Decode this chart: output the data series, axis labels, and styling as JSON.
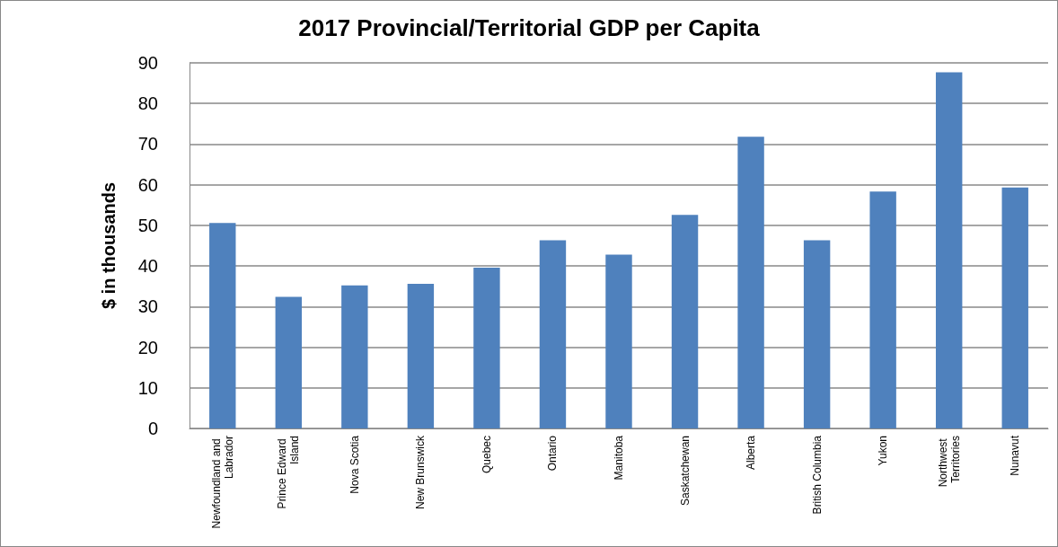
{
  "chart_data": {
    "type": "bar",
    "title": "2017 Provincial/Territorial GDP per Capita",
    "ylabel": "$ in thousands",
    "categories": [
      "Newfoundland and Labrador",
      "Prince Edward Island",
      "Nova Scotia",
      "New Brunswick",
      "Quebec",
      "Ontario",
      "Manitoba",
      "Saskatchewan",
      "Alberta",
      "British Columbia",
      "Yukon",
      "Northwest Territories",
      "Nunavut"
    ],
    "values": [
      50.6,
      32.4,
      35.2,
      35.6,
      39.6,
      46.3,
      42.8,
      52.6,
      71.8,
      46.3,
      58.3,
      87.7,
      59.3
    ],
    "color": "#4f81bd",
    "ylim": [
      0,
      90
    ],
    "yticks": [
      0,
      10,
      20,
      30,
      40,
      50,
      60,
      70,
      80,
      90
    ],
    "grid": "y"
  }
}
